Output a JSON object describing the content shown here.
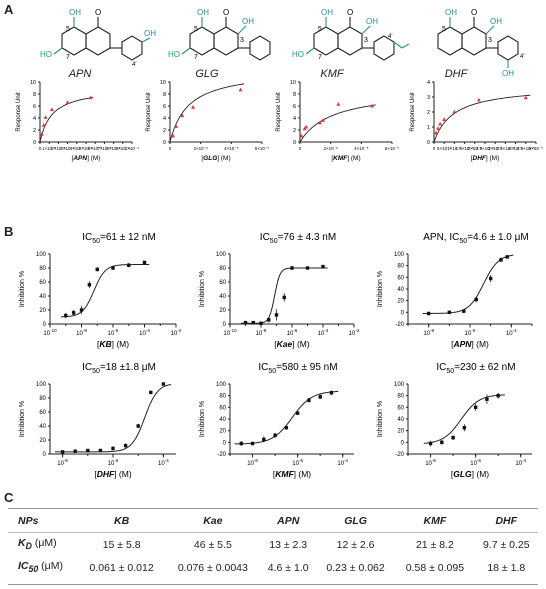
{
  "panel_letters": {
    "a": "A",
    "b": "B",
    "c": "C"
  },
  "colors": {
    "accent": "#2a8f8f",
    "points": "#e0393c",
    "curve": "#222222"
  },
  "compounds": [
    "APN",
    "GLG",
    "KMF",
    "DHF"
  ],
  "chart_data": [
    {
      "type": "scatter",
      "panel": "A-APN",
      "ylabel": "Response Unit",
      "xlabel_name": "APN",
      "xlabel_unit": "(M)",
      "xticks": [
        "0",
        "1×10⁻⁵",
        "2×10⁻⁵",
        "3×10⁻⁵",
        "4×10⁻⁵",
        "5×10⁻⁵",
        "6×10⁻⁵",
        "7×10⁻⁵",
        "8×10⁻⁵",
        "9×10⁻⁵",
        "1×10⁻⁴"
      ],
      "xlim": [
        0,
        0.0001
      ],
      "yticks": [
        "0",
        "2",
        "4",
        "6",
        "8",
        "10"
      ],
      "ylim": [
        0,
        10
      ],
      "x": [
        2e-06,
        4e-06,
        6e-06,
        1.3e-05,
        3e-05,
        5.5e-05
      ],
      "y": [
        1.3,
        2.8,
        4.1,
        5.4,
        6.6,
        7.4
      ],
      "fit": {
        "rmax": 9.1,
        "kd": 1.3e-05
      }
    },
    {
      "type": "scatter",
      "panel": "A-GLG",
      "ylabel": "Response Unit",
      "xlabel_name": "GLG",
      "xlabel_unit": "(M)",
      "xticks": [
        "0",
        "2×10⁻⁵",
        "4×10⁻⁵",
        "6×10⁻⁵"
      ],
      "xlim": [
        0,
        6e-05
      ],
      "yticks": [
        "0",
        "2",
        "4",
        "6",
        "8",
        "10"
      ],
      "ylim": [
        0,
        10
      ],
      "x": [
        2e-06,
        4e-06,
        8e-06,
        1.5e-05,
        4.6e-05
      ],
      "y": [
        1.0,
        2.6,
        4.4,
        5.8,
        8.7
      ],
      "fit": {
        "rmax": 12.1,
        "kd": 1.2e-05
      }
    },
    {
      "type": "scatter",
      "panel": "A-KMF",
      "ylabel": "Response Unit",
      "xlabel_name": "KMF",
      "xlabel_unit": "(M)",
      "xticks": [
        "0",
        "2×10⁻⁵",
        "4×10⁻⁵",
        "6×10⁻⁵"
      ],
      "xlim": [
        0,
        6e-05
      ],
      "yticks": [
        "0",
        "2",
        "4",
        "6",
        "8",
        "10"
      ],
      "ylim": [
        0,
        10
      ],
      "x": [
        1e-06,
        3e-06,
        4e-06,
        1.3e-05,
        1.5e-05,
        2.5e-05,
        4.7e-05
      ],
      "y": [
        1.0,
        2.2,
        2.5,
        3.2,
        3.6,
        6.3,
        6.0
      ],
      "fit": {
        "rmax": 8.8,
        "kd": 2.1e-05
      }
    },
    {
      "type": "scatter",
      "panel": "A-DHF",
      "ylabel": "Response Unit",
      "xlabel_name": "DHF",
      "xlabel_unit": "(M)",
      "xticks": [
        "0",
        "5×10⁻⁶",
        "1×10⁻⁵",
        "1.5×10⁻⁵",
        "2×10⁻⁵",
        "2.5×10⁻⁵",
        "3×10⁻⁵",
        "3.5×10⁻⁵",
        "4×10⁻⁵",
        "4.5×10⁻⁵",
        "5×10⁻⁵"
      ],
      "xlim": [
        0,
        5e-05
      ],
      "yticks": [
        "0",
        "1",
        "2",
        "3",
        "4"
      ],
      "ylim": [
        0,
        4
      ],
      "x": [
        1e-06,
        2e-06,
        3e-06,
        5e-06,
        1e-05,
        2.2e-05,
        4.5e-05
      ],
      "y": [
        0.6,
        0.9,
        1.2,
        1.5,
        2.0,
        2.8,
        2.95
      ],
      "fit": {
        "rmax": 3.76,
        "kd": 9.7e-06
      }
    },
    {
      "type": "line",
      "panel": "B-KB",
      "title_pre": "IC",
      "title_sub": "50",
      "title_post": "=61 ± 12 nM",
      "ylabel": "Inhibition %",
      "xlabel_name": "KB",
      "xlabel_unit": "(M)",
      "log_x": true,
      "xlim": [
        -10,
        -2
      ],
      "xtick_exps": [
        "-10",
        "-8",
        "-6",
        "-4",
        "-2"
      ],
      "ylim": [
        0,
        100
      ],
      "yticks": [
        "0",
        "20",
        "40",
        "60",
        "80",
        "100"
      ],
      "x": [
        -9,
        -8.5,
        -8,
        -7.5,
        -7,
        -6,
        -5,
        -4
      ],
      "y": [
        12,
        16,
        20,
        56,
        78,
        80,
        84,
        88
      ],
      "err": [
        4,
        4,
        6,
        5,
        3,
        3,
        3,
        2
      ],
      "fit": {
        "bottom": 10,
        "top": 85,
        "logic50": -7.21,
        "hill": 1.2
      }
    },
    {
      "type": "line",
      "panel": "B-Kae",
      "title_pre": "IC",
      "title_sub": "50",
      "title_post": "=76 ± 4.3 nM",
      "ylabel": "Inhibition %",
      "xlabel_name": "Kae",
      "xlabel_unit": "(M)",
      "log_x": true,
      "xlim": [
        -10,
        -2
      ],
      "xtick_exps": [
        "-10",
        "-8",
        "-6",
        "-4",
        "-2"
      ],
      "ylim": [
        0,
        100
      ],
      "yticks": [
        "0",
        "20",
        "40",
        "60",
        "80",
        "100"
      ],
      "x": [
        -9,
        -8.5,
        -8,
        -7.5,
        -7,
        -6.5,
        -6,
        -5,
        -4
      ],
      "y": [
        2,
        2,
        1,
        6,
        13,
        38,
        80,
        80,
        82
      ],
      "err": [
        2,
        2,
        2,
        4,
        8,
        6,
        3,
        2,
        1
      ],
      "fit": {
        "bottom": 1,
        "top": 80,
        "logic50": -7.12,
        "hill": 2.5
      }
    },
    {
      "type": "line",
      "panel": "B-APN",
      "title_pre": "APN, IC",
      "title_sub": "50",
      "title_post": "=4.6 ± 1.0 μM",
      "ylabel": "Inhibition %",
      "xlabel_name": "APN",
      "xlabel_unit": "(M)",
      "log_x": true,
      "xlim": [
        -9,
        -3
      ],
      "xtick_exps": [
        "-8",
        "-6",
        "-4"
      ],
      "ylim": [
        -20,
        100
      ],
      "yticks": [
        "-20",
        "0",
        "20",
        "40",
        "60",
        "80",
        "100"
      ],
      "x": [
        -8,
        -7,
        -6.3,
        -5.7,
        -5,
        -4.5,
        -4.2
      ],
      "y": [
        -2,
        0,
        2,
        22,
        58,
        90,
        95
      ],
      "err": [
        3,
        3,
        3,
        5,
        6,
        4,
        3
      ],
      "fit": {
        "bottom": -2,
        "top": 100,
        "logic50": -5.34,
        "hill": 1.2
      }
    },
    {
      "type": "line",
      "panel": "B-DHF",
      "title_pre": "IC",
      "title_sub": "50",
      "title_post": "=18 ±1.8 μM",
      "ylabel": "Inhibition %",
      "xlabel_name": "DHF",
      "xlabel_unit": "(M)",
      "log_x": true,
      "xlim": [
        -8.5,
        -3.5
      ],
      "xtick_exps": [
        "-8",
        "-6",
        "-4"
      ],
      "ylim": [
        0,
        100
      ],
      "yticks": [
        "0",
        "20",
        "40",
        "60",
        "80",
        "100"
      ],
      "x": [
        -8,
        -7.5,
        -7,
        -6.5,
        -6,
        -5.5,
        -5,
        -4.5,
        -4
      ],
      "y": [
        3,
        4,
        5,
        5,
        8,
        12,
        40,
        88,
        100
      ],
      "err": [
        2,
        2,
        2,
        2,
        3,
        3,
        3,
        2,
        1
      ],
      "fit": {
        "bottom": 3,
        "top": 101,
        "logic50": -4.74,
        "hill": 1.7
      }
    },
    {
      "type": "line",
      "panel": "B-KMF",
      "title_pre": "IC",
      "title_sub": "50",
      "title_post": "=580 ± 95 nM",
      "ylabel": "Inhibition %",
      "xlabel_name": "KMF",
      "xlabel_unit": "(M)",
      "log_x": true,
      "xlim": [
        -9,
        -3.5
      ],
      "xtick_exps": [
        "-8",
        "-6",
        "-4"
      ],
      "ylim": [
        -20,
        100
      ],
      "yticks": [
        "-20",
        "0",
        "20",
        "40",
        "60",
        "80",
        "100"
      ],
      "x": [
        -8.5,
        -8,
        -7.5,
        -7,
        -6.5,
        -6,
        -5.5,
        -5,
        -4.5
      ],
      "y": [
        -2,
        -2,
        5,
        12,
        25,
        50,
        72,
        78,
        85
      ],
      "err": [
        4,
        3,
        5,
        4,
        3,
        3,
        4,
        4,
        4
      ],
      "fit": {
        "bottom": -3,
        "top": 88,
        "logic50": -6.24,
        "hill": 1.0
      }
    },
    {
      "type": "line",
      "panel": "B-GLG",
      "title_pre": "IC",
      "title_sub": "50",
      "title_post": "=230 ± 62  nM",
      "ylabel": "Inhibition %",
      "xlabel_name": "GLG",
      "xlabel_unit": "(M)",
      "log_x": true,
      "xlim": [
        -9,
        -3.5
      ],
      "xtick_exps": [
        "-8",
        "-6",
        "-4"
      ],
      "ylim": [
        -20,
        100
      ],
      "yticks": [
        "-20",
        "0",
        "20",
        "40",
        "60",
        "80",
        "100"
      ],
      "x": [
        -8,
        -7.5,
        -7,
        -6.5,
        -6,
        -5.5,
        -5
      ],
      "y": [
        -2,
        0,
        8,
        25,
        60,
        74,
        80
      ],
      "err": [
        5,
        4,
        4,
        6,
        6,
        8,
        5
      ],
      "fit": {
        "bottom": -3,
        "top": 82,
        "logic50": -6.64,
        "hill": 1.1
      }
    }
  ],
  "table": {
    "header": [
      "NPs",
      "KB",
      "Kae",
      "APN",
      "GLG",
      "KMF",
      "DHF"
    ],
    "rows": [
      {
        "label": "K",
        "sub": "D",
        "unit": " (μM)",
        "values": [
          "15 ± 5.8",
          "46 ± 5.5",
          "13 ± 2.3",
          "12 ± 2.6",
          "21 ± 8.2",
          "9.7 ± 0.25"
        ]
      },
      {
        "label": "IC",
        "sub": "50",
        "unit": " (μM)",
        "values": [
          "0.061 ± 0.012",
          "0.076 ± 0.0043",
          "4.6 ± 1.0",
          "0.23 ± 0.062",
          "0.58 ± 0.095",
          "18 ± 1.8"
        ]
      }
    ]
  }
}
